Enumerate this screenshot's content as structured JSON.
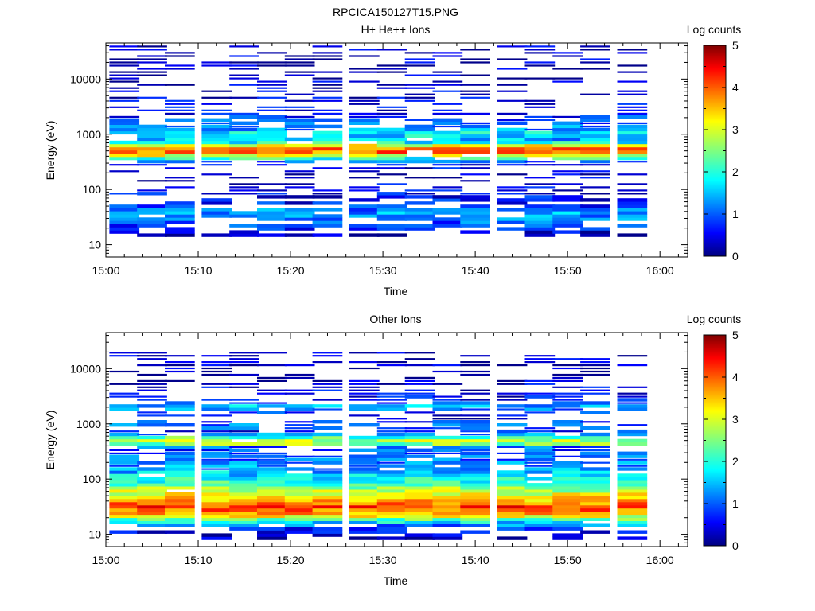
{
  "figure": {
    "title": "RPCICA150127T15.PNG"
  },
  "chart_data": [
    {
      "type": "heatmap",
      "title": "H+ He++ Ions",
      "xlabel": "Time",
      "ylabel": "Energy (eV)",
      "x_ticks": [
        "15:00",
        "15:10",
        "15:20",
        "15:30",
        "15:40",
        "15:50",
        "16:00"
      ],
      "x_range": [
        "15:00",
        "16:03"
      ],
      "y_scale": "log",
      "y_ticks": [
        10,
        100,
        1000,
        10000
      ],
      "y_tick_labels": [
        "10",
        "100",
        "1000",
        "10000"
      ],
      "y_range": [
        6,
        45000
      ],
      "colorbar": {
        "label": "Log counts",
        "min": 0,
        "max": 5,
        "ticks": [
          "0",
          "1",
          "2",
          "3",
          "4",
          "5"
        ],
        "colormap": "jet"
      },
      "time_bins": [
        "15:02",
        "15:05",
        "15:08",
        "15:12",
        "15:15",
        "15:18",
        "15:21",
        "15:24",
        "15:28",
        "15:31",
        "15:34",
        "15:37",
        "15:40",
        "15:44",
        "15:47",
        "15:50",
        "15:53",
        "15:57"
      ],
      "profile": {
        "energies_eV": [
          15,
          20,
          25,
          30,
          35,
          40,
          45,
          50,
          60,
          70,
          100,
          150,
          200,
          300,
          380,
          420,
          450,
          500,
          550,
          600,
          650,
          700,
          800,
          900,
          1000,
          1100,
          1200,
          1400,
          1700,
          2000,
          2500,
          3000,
          5000,
          7000,
          10000,
          14000,
          20000,
          30000,
          40000
        ],
        "log_counts": [
          0.2,
          0.7,
          1.0,
          1.2,
          1.3,
          1.5,
          1.2,
          0.8,
          0.6,
          0.6,
          0.5,
          0.4,
          0.4,
          0.5,
          2.3,
          3.0,
          3.5,
          4.0,
          3.8,
          3.3,
          2.8,
          2.0,
          1.5,
          1.5,
          2.2,
          1.6,
          1.3,
          1.2,
          1.0,
          0.9,
          0.6,
          0.5,
          0.4,
          0.4,
          0.3,
          0.3,
          0.3,
          0.3,
          0.3
        ]
      }
    },
    {
      "type": "heatmap",
      "title": "Other Ions",
      "xlabel": "Time",
      "ylabel": "Energy (eV)",
      "x_ticks": [
        "15:00",
        "15:10",
        "15:20",
        "15:30",
        "15:40",
        "15:50",
        "16:00"
      ],
      "x_range": [
        "15:00",
        "16:03"
      ],
      "y_scale": "log",
      "y_ticks": [
        10,
        100,
        1000,
        10000
      ],
      "y_tick_labels": [
        "10",
        "100",
        "1000",
        "10000"
      ],
      "y_range": [
        6,
        45000
      ],
      "colorbar": {
        "label": "Log counts",
        "min": 0,
        "max": 5,
        "ticks": [
          "0",
          "1",
          "2",
          "3",
          "4",
          "5"
        ],
        "colormap": "jet"
      },
      "time_bins": [
        "15:02",
        "15:05",
        "15:08",
        "15:12",
        "15:15",
        "15:18",
        "15:21",
        "15:24",
        "15:28",
        "15:31",
        "15:34",
        "15:37",
        "15:40",
        "15:44",
        "15:47",
        "15:50",
        "15:53",
        "15:57"
      ],
      "profile": {
        "energies_eV": [
          8,
          12,
          17,
          20,
          24,
          28,
          32,
          36,
          42,
          50,
          60,
          75,
          90,
          110,
          140,
          180,
          230,
          300,
          380,
          450,
          550,
          700,
          1000,
          1200,
          1500,
          1800,
          2000,
          2500,
          5000,
          7000,
          20000
        ],
        "log_counts": [
          0.2,
          0.6,
          1.8,
          2.7,
          3.5,
          3.9,
          4.1,
          3.8,
          3.4,
          3.1,
          2.8,
          2.5,
          2.1,
          1.8,
          1.5,
          1.3,
          1.1,
          1.0,
          0.9,
          2.9,
          2.5,
          0.6,
          1.2,
          0.4,
          0.6,
          1.0,
          1.8,
          0.6,
          0.4,
          0.3,
          0.3
        ]
      }
    }
  ]
}
